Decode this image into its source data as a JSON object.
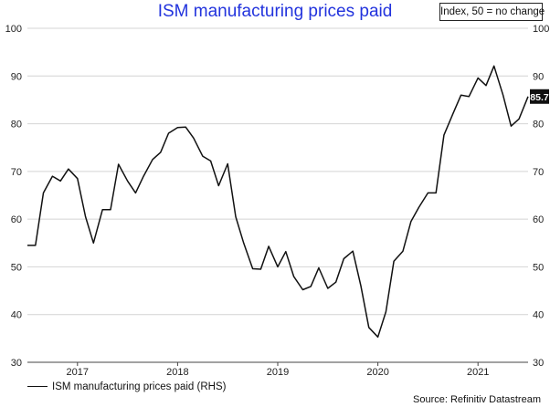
{
  "chart_data": {
    "type": "line",
    "title": "ISM manufacturing prices paid",
    "note": "Index, 50 = no change",
    "ylim": [
      30,
      100
    ],
    "yticks": [
      30,
      40,
      50,
      60,
      70,
      80,
      90,
      100
    ],
    "xlim": [
      2016.42,
      2021.42
    ],
    "xticks": [
      {
        "label": "2017",
        "x": 2016.92
      },
      {
        "label": "2018",
        "x": 2017.92
      },
      {
        "label": "2019",
        "x": 2018.92
      },
      {
        "label": "2020",
        "x": 2019.92
      },
      {
        "label": "2021",
        "x": 2020.92
      }
    ],
    "grid": "horizontal",
    "legend_position": "bottom-left",
    "last_value_label": "85.7",
    "source": "Source: Refinitiv Datastream",
    "series": [
      {
        "name": "ISM manufacturing prices paid (RHS)",
        "color": "#111111",
        "x": [
          2016.42,
          2016.5,
          2016.58,
          2016.67,
          2016.75,
          2016.83,
          2016.92,
          2017.0,
          2017.08,
          2017.17,
          2017.25,
          2017.33,
          2017.42,
          2017.5,
          2017.58,
          2017.67,
          2017.75,
          2017.83,
          2017.92,
          2018.0,
          2018.08,
          2018.17,
          2018.25,
          2018.33,
          2018.42,
          2018.5,
          2018.58,
          2018.67,
          2018.75,
          2018.83,
          2018.92,
          2019.0,
          2019.08,
          2019.17,
          2019.25,
          2019.33,
          2019.42,
          2019.5,
          2019.58,
          2019.67,
          2019.75,
          2019.83,
          2019.92,
          2020.0,
          2020.08,
          2020.17,
          2020.25,
          2020.33,
          2020.42,
          2020.5,
          2020.58,
          2020.67,
          2020.75,
          2020.83,
          2020.92,
          2021.0,
          2021.08,
          2021.17,
          2021.25,
          2021.33,
          2021.42
        ],
        "values": [
          54.5,
          54.5,
          65.5,
          69.0,
          68.0,
          70.5,
          68.5,
          60.5,
          55.0,
          62.0,
          62.0,
          71.5,
          68.0,
          65.5,
          69.0,
          72.5,
          74.0,
          78.0,
          79.2,
          79.3,
          77.0,
          73.2,
          72.2,
          67.0,
          71.6,
          60.5,
          55.0,
          49.6,
          49.5,
          54.3,
          50.0,
          53.2,
          48.0,
          45.2,
          45.9,
          49.8,
          45.5,
          46.8,
          51.7,
          53.3,
          46.0,
          37.3,
          35.3,
          40.6,
          51.2,
          53.3,
          59.5,
          62.5,
          65.5,
          65.5,
          77.6,
          82.1,
          86.0,
          85.7,
          89.6,
          88.0,
          92.1,
          86.0,
          79.5,
          81.0,
          85.7
        ]
      }
    ]
  }
}
